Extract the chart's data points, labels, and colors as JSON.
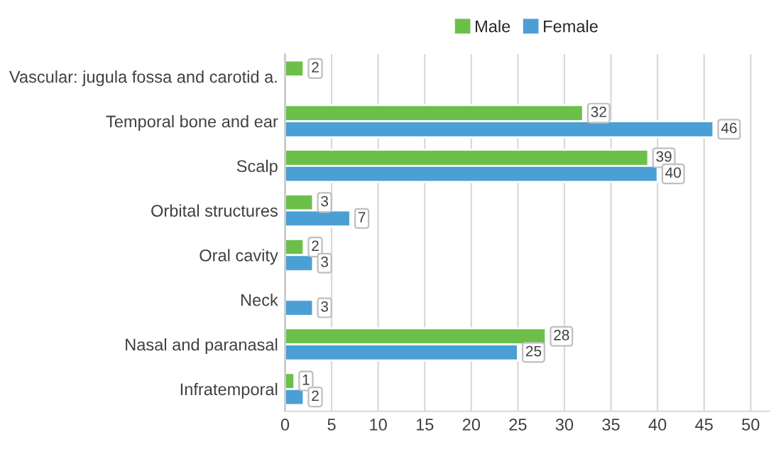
{
  "chart_data": {
    "type": "bar",
    "orientation": "horizontal",
    "categories": [
      "Vascular: jugula fossa and carotid a.",
      "Temporal bone and ear",
      "Scalp",
      "Orbital structures",
      "Oral cavity",
      "Neck",
      "Nasal and paranasal",
      "Infratemporal"
    ],
    "series": [
      {
        "name": "Male",
        "color": "#6cc04a",
        "values": [
          2,
          32,
          39,
          3,
          2,
          null,
          28,
          1
        ]
      },
      {
        "name": "Female",
        "color": "#4a9fd4",
        "values": [
          null,
          46,
          40,
          7,
          3,
          3,
          25,
          2
        ]
      }
    ],
    "xlim": [
      0,
      52
    ],
    "xticks": [
      0,
      5,
      10,
      15,
      20,
      25,
      30,
      35,
      40,
      45,
      50
    ],
    "grid": "x",
    "legend": "top",
    "data_labels": true
  }
}
